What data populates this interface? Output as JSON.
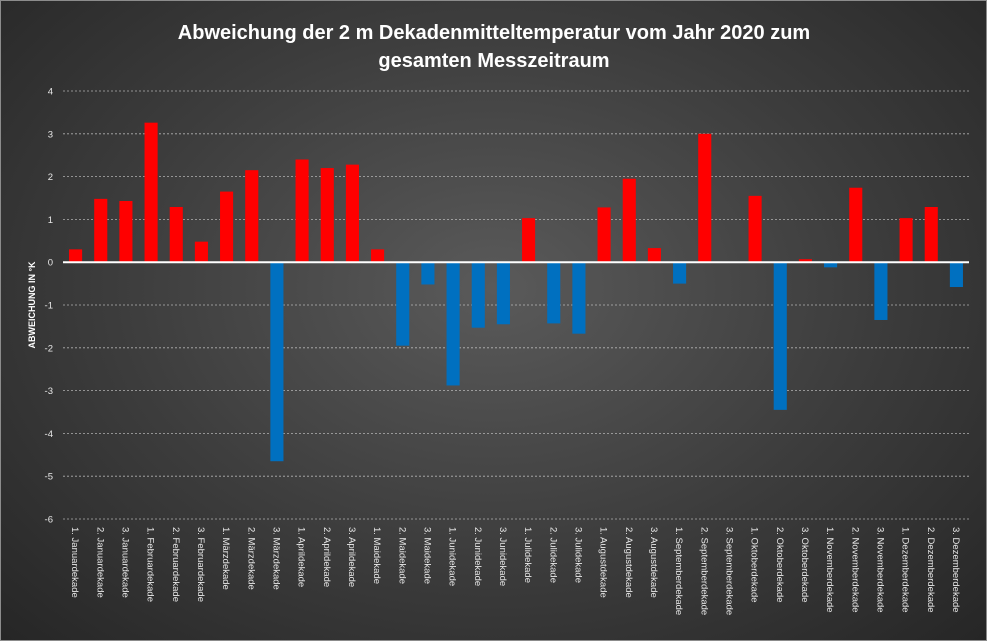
{
  "chart_data": {
    "type": "bar",
    "title_lines": [
      "Abweichung der 2 m Dekadenmitteltemperatur  vom Jahr 2020 zum",
      "gesamten Messzeitraum"
    ],
    "xlabel": "",
    "ylabel": "ABWEICHUNG IN °K",
    "ylim": [
      -6,
      4
    ],
    "yticks": [
      4,
      3,
      2,
      1,
      0,
      -1,
      -2,
      -3,
      -4,
      -5,
      -6
    ],
    "grid": true,
    "legend": "none",
    "colors": {
      "positive": "#ff0000",
      "negative": "#0070c0",
      "grid": "#d9d9d9",
      "zero_line": "#ffffff"
    },
    "categories": [
      "1. Januardekade",
      "2. Januardekade",
      "3. Januardekade",
      "1. Februardekade",
      "2. Februardekade",
      "3. Februardekade",
      "1. Märzdekade",
      "2. Märzdekade",
      "3. Märzdekade",
      "1. Aprildekade",
      "2. Aprildekade",
      "3. Aprildekade",
      "1. Maidekade",
      "2. Maidekade",
      "3. Maidekade",
      "1. Junidekade",
      "2. Junidekade",
      "3. Junidekade",
      "1. Julidekade",
      "2. Julidekade",
      "3. Julidekade",
      "1. Augustdekade",
      "2. Augustdekade",
      "3. Augustdekade",
      "1. Septemberdekade",
      "2. Septemberdekade",
      "3. Septemberdekade",
      "1. Oktoberdekade",
      "2. Oktoberdekade",
      "3. Oktoberdekade",
      "1. Novemberdekade",
      "2. Novemberdekade",
      "3. Novemberdekade",
      "1. Dezemberdekade",
      "2. Dezemberdekade",
      "3. Dezemberdekade"
    ],
    "values": [
      0.3,
      1.48,
      1.43,
      3.26,
      1.29,
      0.48,
      1.65,
      2.15,
      -4.65,
      2.4,
      2.2,
      2.28,
      0.3,
      -1.95,
      -0.52,
      -2.88,
      -1.53,
      -1.45,
      1.03,
      -1.43,
      -1.67,
      1.28,
      1.95,
      0.33,
      -0.5,
      3.0,
      0.0,
      1.55,
      -3.45,
      0.07,
      -0.12,
      1.74,
      -1.35,
      1.03,
      1.29,
      -0.58
    ]
  }
}
